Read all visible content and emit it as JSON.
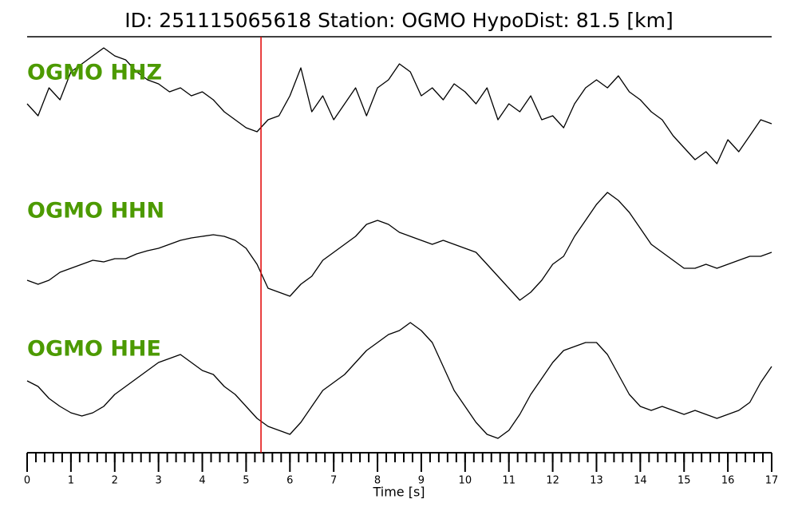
{
  "chart_data": {
    "type": "line",
    "title": "ID: 251115065618   Station: OGMO   HypoDist:    81.5 [km]",
    "xlabel": "Time [s]",
    "x": [
      0,
      0.25,
      0.5,
      0.75,
      1,
      1.25,
      1.5,
      1.75,
      2,
      2.25,
      2.5,
      2.75,
      3,
      3.25,
      3.5,
      3.75,
      4,
      4.25,
      4.5,
      4.75,
      5,
      5.25,
      5.5,
      5.75,
      6,
      6.25,
      6.5,
      6.75,
      7,
      7.25,
      7.5,
      7.75,
      8,
      8.25,
      8.5,
      8.75,
      9,
      9.25,
      9.5,
      9.75,
      10,
      10.25,
      10.5,
      10.75,
      11,
      11.25,
      11.5,
      11.75,
      12,
      12.25,
      12.5,
      12.75,
      13,
      13.25,
      13.5,
      13.75,
      14,
      14.25,
      14.5,
      14.75,
      15,
      15.25,
      15.5,
      15.75,
      16,
      16.25,
      16.5,
      16.75,
      17
    ],
    "series": [
      {
        "name": "OGMO HHZ",
        "color": "#000000",
        "label_color": "#4c9a00",
        "values": [
          5,
          -10,
          25,
          10,
          45,
          55,
          65,
          75,
          65,
          60,
          45,
          35,
          30,
          20,
          25,
          15,
          20,
          10,
          -5,
          -15,
          -25,
          -30,
          -15,
          -10,
          15,
          50,
          -5,
          15,
          -15,
          5,
          25,
          -10,
          25,
          35,
          55,
          45,
          15,
          25,
          10,
          30,
          20,
          5,
          25,
          -15,
          5,
          -5,
          15,
          -15,
          -10,
          -25,
          5,
          25,
          35,
          25,
          40,
          20,
          10,
          -5,
          -15,
          -35,
          -50,
          -65,
          -55,
          -70,
          -40,
          -55,
          -35,
          -15,
          -20
        ]
      },
      {
        "name": "OGMO HHN",
        "color": "#000000",
        "label_color": "#4c9a00",
        "values": [
          -43,
          -48,
          -43,
          -33,
          -28,
          -23,
          -18,
          -20,
          -16,
          -16,
          -10,
          -6,
          -3,
          2,
          7,
          10,
          12,
          14,
          12,
          7,
          -3,
          -23,
          -53,
          -58,
          -63,
          -48,
          -38,
          -18,
          -8,
          2,
          12,
          27,
          32,
          27,
          17,
          12,
          7,
          2,
          7,
          2,
          -3,
          -8,
          -23,
          -38,
          -53,
          -68,
          -58,
          -43,
          -23,
          -13,
          12,
          32,
          52,
          67,
          57,
          42,
          22,
          2,
          -8,
          -18,
          -28,
          -28,
          -23,
          -28,
          -23,
          -18,
          -13,
          -13,
          -8
        ]
      },
      {
        "name": "OGMO HHE",
        "color": "#000000",
        "label_color": "#4c9a00",
        "values": [
          4,
          -3,
          -18,
          -28,
          -36,
          -40,
          -36,
          -28,
          -13,
          -3,
          7,
          17,
          27,
          32,
          37,
          27,
          17,
          12,
          -3,
          -13,
          -28,
          -43,
          -53,
          -58,
          -63,
          -48,
          -28,
          -8,
          2,
          12,
          27,
          42,
          52,
          62,
          67,
          77,
          67,
          52,
          22,
          -8,
          -28,
          -48,
          -63,
          -68,
          -58,
          -38,
          -13,
          7,
          27,
          42,
          47,
          52,
          52,
          37,
          12,
          -13,
          -28,
          -33,
          -28,
          -33,
          -38,
          -33,
          -38,
          -43,
          -38,
          -33,
          -23,
          2,
          22
        ]
      }
    ],
    "ylim": [
      -90,
      90
    ],
    "xlim": [
      0,
      17
    ],
    "xticks": [
      0,
      1,
      2,
      3,
      4,
      5,
      6,
      7,
      8,
      9,
      10,
      11,
      12,
      13,
      14,
      15,
      16,
      17
    ],
    "xminor": 0.2,
    "vline": {
      "x": 5.34,
      "color": "#e00000"
    }
  }
}
